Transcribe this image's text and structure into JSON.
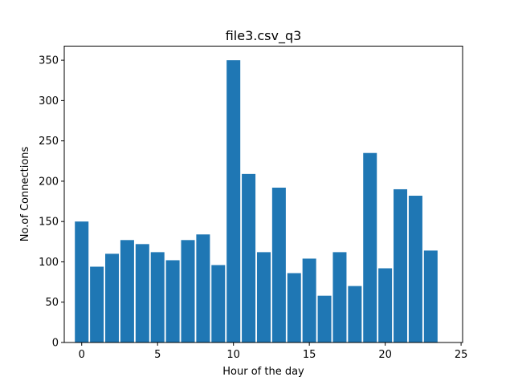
{
  "chart_data": {
    "type": "bar",
    "title": "file3.csv_q3",
    "xlabel": "Hour of the day",
    "ylabel": "No.of Connections",
    "x": [
      0,
      1,
      2,
      3,
      4,
      5,
      6,
      7,
      8,
      9,
      10,
      11,
      12,
      13,
      14,
      15,
      16,
      17,
      18,
      19,
      20,
      21,
      22,
      23
    ],
    "values": [
      150,
      94,
      110,
      127,
      122,
      112,
      102,
      127,
      134,
      96,
      350,
      209,
      112,
      192,
      86,
      104,
      58,
      112,
      70,
      235,
      92,
      190,
      182,
      114
    ],
    "xlim": [
      -1.15,
      25.1
    ],
    "ylim": [
      0,
      367.5
    ],
    "xticks": [
      0,
      5,
      10,
      15,
      20,
      25
    ],
    "yticks": [
      0,
      50,
      100,
      150,
      200,
      250,
      300,
      350
    ],
    "bar_color": "#1f77b4",
    "grid": false,
    "legend": "none"
  }
}
